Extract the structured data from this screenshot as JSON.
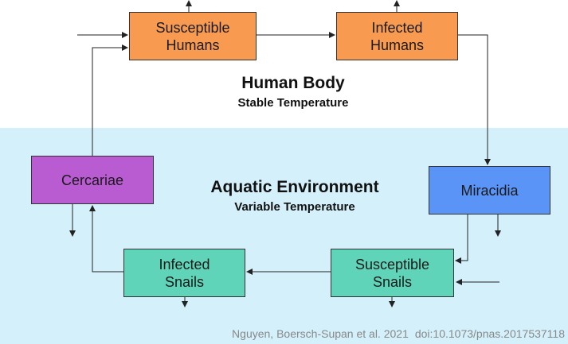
{
  "colors": {
    "top_background": "#ffffff",
    "bottom_background": "#d4f1fb",
    "human_nodes": "#f89a4f",
    "cercariae": "#b95bd1",
    "miracidia": "#5b94f7",
    "snail_nodes": "#5fd4b8",
    "arrow": "#222222"
  },
  "nodes": {
    "susceptible_humans": "Susceptible\nHumans",
    "infected_humans": "Infected\nHumans",
    "cercariae": "Cercariae",
    "miracidia": "Miracidia",
    "infected_snails": "Infected\nSnails",
    "susceptible_snails": "Susceptible\nSnails"
  },
  "regions": {
    "human": {
      "title": "Human Body",
      "subtitle": "Stable Temperature"
    },
    "aquatic": {
      "title": "Aquatic Environment",
      "subtitle": "Variable Temperature"
    }
  },
  "citation": {
    "authors": "Nguyen, Boersch-Supan et al. 2021",
    "doi": "doi:10.1073/pnas.2017537118"
  }
}
